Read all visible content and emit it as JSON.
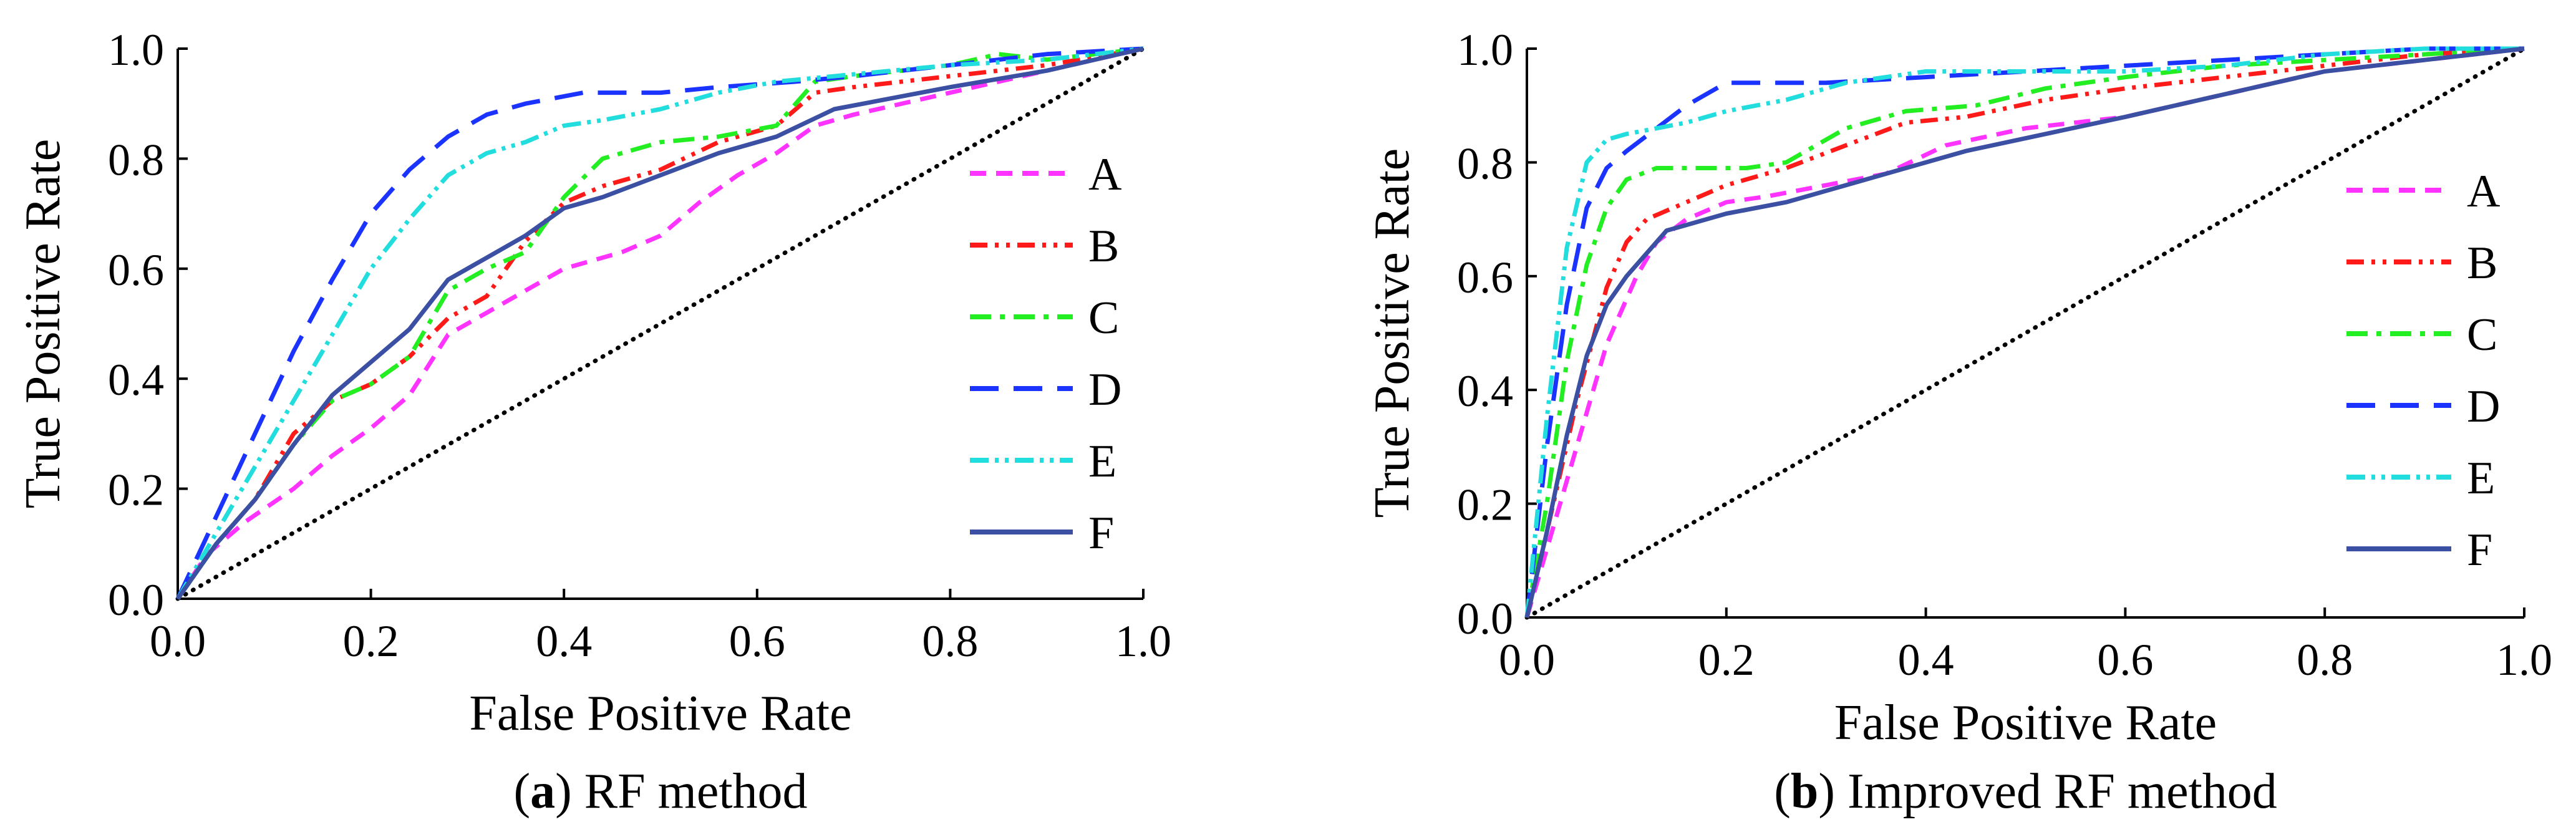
{
  "chart_data": [
    {
      "id": "a",
      "type": "line",
      "title": "RF method",
      "caption_letter": "a",
      "xlabel": "False Positive Rate",
      "ylabel": "True Positive Rate",
      "xlim": [
        0,
        1
      ],
      "ylim": [
        0,
        1
      ],
      "xticks": [
        "0.0",
        "0.2",
        "0.4",
        "0.6",
        "0.8",
        "1.0"
      ],
      "yticks": [
        "0.0",
        "0.2",
        "0.4",
        "0.6",
        "0.8",
        "1.0"
      ],
      "grid": false,
      "legend_position": "right-middle",
      "diagonal": true,
      "series": [
        {
          "name": "A",
          "color": "#ff33ff",
          "dash": "dash",
          "x": [
            0,
            0.03,
            0.07,
            0.12,
            0.16,
            0.2,
            0.24,
            0.28,
            0.32,
            0.36,
            0.4,
            0.46,
            0.5,
            0.54,
            0.58,
            0.62,
            0.66,
            0.7,
            0.8,
            0.9,
            1.0
          ],
          "y": [
            0,
            0.08,
            0.14,
            0.2,
            0.26,
            0.31,
            0.37,
            0.48,
            0.52,
            0.56,
            0.6,
            0.63,
            0.66,
            0.72,
            0.77,
            0.81,
            0.86,
            0.88,
            0.92,
            0.96,
            1.0
          ]
        },
        {
          "name": "B",
          "color": "#ff1a1a",
          "dash": "dashdotdot",
          "x": [
            0,
            0.04,
            0.08,
            0.12,
            0.16,
            0.2,
            0.24,
            0.28,
            0.32,
            0.36,
            0.4,
            0.44,
            0.5,
            0.56,
            0.62,
            0.66,
            0.7,
            0.8,
            0.9,
            1.0
          ],
          "y": [
            0,
            0.1,
            0.18,
            0.3,
            0.36,
            0.39,
            0.44,
            0.51,
            0.55,
            0.65,
            0.72,
            0.75,
            0.78,
            0.83,
            0.86,
            0.92,
            0.93,
            0.95,
            0.97,
            1.0
          ]
        },
        {
          "name": "C",
          "color": "#22ee22",
          "dash": "dashdot",
          "x": [
            0,
            0.04,
            0.08,
            0.12,
            0.16,
            0.2,
            0.24,
            0.28,
            0.32,
            0.36,
            0.4,
            0.44,
            0.5,
            0.56,
            0.62,
            0.66,
            0.7,
            0.8,
            0.85,
            0.9,
            1.0
          ],
          "y": [
            0,
            0.1,
            0.18,
            0.28,
            0.36,
            0.39,
            0.44,
            0.56,
            0.6,
            0.63,
            0.73,
            0.8,
            0.83,
            0.84,
            0.86,
            0.94,
            0.95,
            0.97,
            0.99,
            0.98,
            1.0
          ]
        },
        {
          "name": "D",
          "color": "#1a33ff",
          "dash": "longdash",
          "x": [
            0,
            0.04,
            0.08,
            0.12,
            0.16,
            0.2,
            0.24,
            0.28,
            0.32,
            0.36,
            0.42,
            0.5,
            0.56,
            0.64,
            0.7,
            0.8,
            0.9,
            1.0
          ],
          "y": [
            0,
            0.15,
            0.3,
            0.45,
            0.58,
            0.7,
            0.78,
            0.84,
            0.88,
            0.9,
            0.92,
            0.92,
            0.93,
            0.94,
            0.95,
            0.97,
            0.99,
            1.0
          ]
        },
        {
          "name": "E",
          "color": "#22dddd",
          "dash": "dashdotdot2",
          "x": [
            0,
            0.04,
            0.08,
            0.12,
            0.16,
            0.2,
            0.24,
            0.28,
            0.32,
            0.36,
            0.4,
            0.44,
            0.5,
            0.56,
            0.62,
            0.68,
            0.8,
            0.9,
            1.0
          ],
          "y": [
            0,
            0.12,
            0.24,
            0.36,
            0.48,
            0.6,
            0.69,
            0.77,
            0.81,
            0.83,
            0.86,
            0.87,
            0.89,
            0.92,
            0.94,
            0.95,
            0.97,
            0.98,
            1.0
          ]
        },
        {
          "name": "F",
          "color": "#3b4fa3",
          "dash": "solid",
          "x": [
            0,
            0.04,
            0.08,
            0.12,
            0.16,
            0.2,
            0.24,
            0.28,
            0.32,
            0.36,
            0.4,
            0.44,
            0.5,
            0.56,
            0.62,
            0.68,
            0.8,
            0.9,
            1.0
          ],
          "y": [
            0,
            0.1,
            0.18,
            0.28,
            0.37,
            0.43,
            0.49,
            0.58,
            0.62,
            0.66,
            0.71,
            0.73,
            0.77,
            0.81,
            0.84,
            0.89,
            0.93,
            0.96,
            1.0
          ]
        }
      ]
    },
    {
      "id": "b",
      "type": "line",
      "title": "Improved RF method",
      "caption_letter": "b",
      "xlabel": "False Positive Rate",
      "ylabel": "True Positive Rate",
      "xlim": [
        0,
        1
      ],
      "ylim": [
        0,
        1
      ],
      "xticks": [
        "0.0",
        "0.2",
        "0.4",
        "0.6",
        "0.8",
        "1.0"
      ],
      "yticks": [
        "0.0",
        "0.2",
        "0.4",
        "0.6",
        "0.8",
        "1.0"
      ],
      "grid": false,
      "legend_position": "right-lower",
      "diagonal": true,
      "series": [
        {
          "name": "A",
          "color": "#ff33ff",
          "dash": "dash",
          "x": [
            0,
            0.02,
            0.05,
            0.08,
            0.11,
            0.13,
            0.16,
            0.2,
            0.24,
            0.3,
            0.36,
            0.42,
            0.5,
            0.6,
            0.7,
            0.8,
            0.9,
            1.0
          ],
          "y": [
            0,
            0.12,
            0.3,
            0.48,
            0.6,
            0.66,
            0.7,
            0.73,
            0.74,
            0.76,
            0.78,
            0.83,
            0.86,
            0.88,
            0.92,
            0.96,
            0.98,
            1.0
          ]
        },
        {
          "name": "B",
          "color": "#ff1a1a",
          "dash": "dashdotdot",
          "x": [
            0,
            0.02,
            0.05,
            0.08,
            0.1,
            0.12,
            0.16,
            0.2,
            0.26,
            0.32,
            0.38,
            0.44,
            0.52,
            0.6,
            0.7,
            0.8,
            0.9,
            1.0
          ],
          "y": [
            0,
            0.15,
            0.38,
            0.58,
            0.66,
            0.7,
            0.73,
            0.76,
            0.79,
            0.83,
            0.87,
            0.88,
            0.91,
            0.93,
            0.95,
            0.97,
            0.99,
            1.0
          ]
        },
        {
          "name": "C",
          "color": "#22ee22",
          "dash": "dashdot",
          "x": [
            0,
            0.02,
            0.04,
            0.06,
            0.08,
            0.1,
            0.13,
            0.18,
            0.22,
            0.26,
            0.32,
            0.38,
            0.45,
            0.52,
            0.6,
            0.7,
            0.8,
            0.9,
            1.0
          ],
          "y": [
            0,
            0.2,
            0.45,
            0.62,
            0.72,
            0.77,
            0.79,
            0.79,
            0.79,
            0.8,
            0.86,
            0.89,
            0.9,
            0.93,
            0.95,
            0.97,
            0.98,
            0.99,
            1.0
          ]
        },
        {
          "name": "D",
          "color": "#1a33ff",
          "dash": "longdash",
          "x": [
            0,
            0.02,
            0.04,
            0.06,
            0.08,
            0.1,
            0.13,
            0.16,
            0.2,
            0.3,
            0.4,
            0.5,
            0.6,
            0.7,
            0.8,
            0.9,
            1.0
          ],
          "y": [
            0,
            0.3,
            0.55,
            0.72,
            0.79,
            0.82,
            0.86,
            0.9,
            0.94,
            0.94,
            0.95,
            0.96,
            0.97,
            0.98,
            0.99,
            1.0,
            1.0
          ]
        },
        {
          "name": "E",
          "color": "#22dddd",
          "dash": "dashdotdot2",
          "x": [
            0,
            0.02,
            0.04,
            0.06,
            0.08,
            0.1,
            0.13,
            0.16,
            0.2,
            0.26,
            0.32,
            0.4,
            0.5,
            0.6,
            0.7,
            0.8,
            0.9,
            1.0
          ],
          "y": [
            0,
            0.35,
            0.65,
            0.8,
            0.84,
            0.85,
            0.86,
            0.87,
            0.89,
            0.91,
            0.94,
            0.96,
            0.96,
            0.96,
            0.97,
            0.99,
            1.0,
            1.0
          ]
        },
        {
          "name": "F",
          "color": "#3b4fa3",
          "dash": "solid",
          "x": [
            0,
            0.02,
            0.04,
            0.06,
            0.08,
            0.1,
            0.12,
            0.14,
            0.16,
            0.2,
            0.26,
            0.32,
            0.38,
            0.44,
            0.52,
            0.6,
            0.7,
            0.8,
            0.9,
            1.0
          ],
          "y": [
            0,
            0.15,
            0.32,
            0.46,
            0.55,
            0.6,
            0.64,
            0.68,
            0.69,
            0.71,
            0.73,
            0.76,
            0.79,
            0.82,
            0.85,
            0.88,
            0.92,
            0.96,
            0.98,
            1.0
          ]
        }
      ]
    }
  ]
}
